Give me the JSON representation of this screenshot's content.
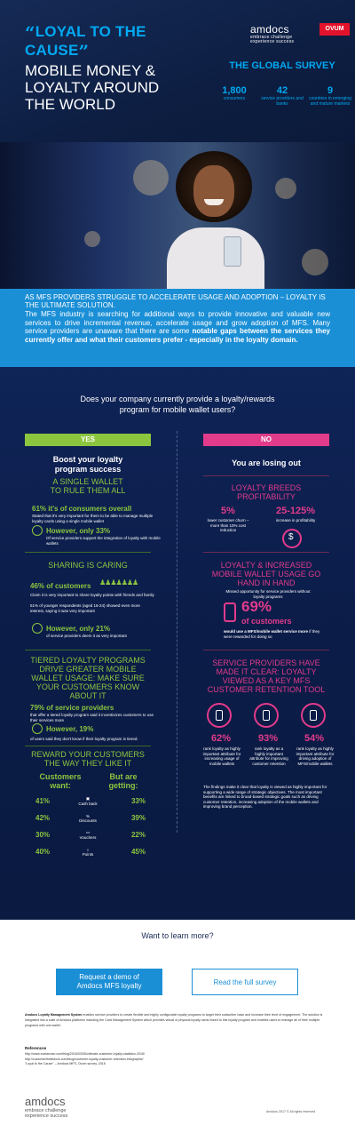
{
  "hero": {
    "quote_line1": "LOYAL TO THE",
    "quote_line2": "CAUSE",
    "subtitle_line1": "MOBILE MONEY &",
    "subtitle_line2": "LOYALTY AROUND",
    "subtitle_line3": "THE WORLD",
    "brand_name": "amdocs",
    "brand_tag1": "embrace challenge",
    "brand_tag2": "experience success",
    "partner_logo": "OVUM"
  },
  "survey": {
    "title": "THE GLOBAL SURVEY",
    "stats": [
      {
        "num": "1,800",
        "label": "consumers"
      },
      {
        "num": "42",
        "label": "service providers and banks"
      },
      {
        "num": "9",
        "label": "countries in emerging and mature markets"
      }
    ]
  },
  "banner": {
    "headline": "AS MFS PROVIDERS STRUGGLE TO ACCELERATE USAGE AND ADOPTION – LOYALTY IS THE ULTIMATE SOLUTION.",
    "body": "The MFS industry is searching for additional ways to provide innovative and valuable new services to drive incremental revenue, accelerate usage and grow adoption of MFS. Many service providers are unaware that there are some",
    "body_bold": "notable gaps between the services they currently offer and what their customers prefer - especially in the loyalty domain."
  },
  "question": {
    "line1": "Does your company currently provide a loyalty/rewards",
    "line2": "program for mobile wallet users?"
  },
  "yes_button": "YES",
  "no_button": "NO",
  "yes_col": {
    "head_line1": "Boost your loyalty",
    "head_line2": "program success",
    "s1_title1": "A SINGLE WALLET",
    "s1_title2": "TO RULE THEM ALL",
    "s1_stat": "61% it's of consumers overall",
    "s1_text": "Stated that it's very important for them to be able to manage multiple loyalty cards using a single mobile wallet",
    "s1_however": "However, only 33%",
    "s1_however_text": "Of service providers support the integration of loyalty with mobile wallets",
    "s2_title": "SHARING IS CARING",
    "s2_stat": "46% of customers",
    "s2_text": "Claim it is very important to share loyalty points with friends and family",
    "s2_text2": "51% of younger respondents (aged 16-24) showed even more interest, saying it was very important",
    "s2_however": "However, only 21%",
    "s2_however_text": "of service providers deem it as very important",
    "s3_title1": "TIERED LOYALTY PROGRAMS",
    "s3_title2": "DRIVE GREATER MOBILE",
    "s3_title3": "WALLET USAGE: MAKE SURE",
    "s3_title4": "YOUR CUSTOMERS KNOW",
    "s3_title5": "ABOUT IT",
    "s3_stat": "79% of service providers",
    "s3_text": "that offer a tiered loyalty program said it incentivizes customers to use their services more",
    "s3_however": "However, 19%",
    "s3_however_text": "of users said they don't know if their loyalty program is tiered.",
    "s4_title1": "REWARD YOUR CUSTOMERS",
    "s4_title2": "THE WAY THEY LIKE IT",
    "s4_left_head1": "Customers",
    "s4_left_head2": "want:",
    "s4_right_head1": "But are",
    "s4_right_head2": "getting:",
    "rewards": [
      {
        "want": "41%",
        "label": "Cash back",
        "get": "33%"
      },
      {
        "want": "42%",
        "label": "Discounts",
        "get": "39%"
      },
      {
        "want": "30%",
        "label": "Vouchers",
        "get": "22%"
      },
      {
        "want": "40%",
        "label": "Points",
        "get": "45%"
      }
    ]
  },
  "no_col": {
    "head": "You are losing out",
    "s1_title1": "LOYALTY BREEDS",
    "s1_title2": "PROFITABILITY",
    "s1_a_num": "5%",
    "s1_a_text": "lower customer churn – more than 10% cost reduction",
    "s1_b_num": "25-125%",
    "s1_b_text": "increase in profitability",
    "s2_title1": "LOYALTY & INCREASED",
    "s2_title2": "MOBILE WALLET USAGE GO",
    "s2_title3": "HAND IN HAND",
    "s2_text": "Missed opportunity for service providers without loyalty programs",
    "s2_num": "69%",
    "s2_num_label": "of customers",
    "s2_bold": "would use a MFS/mobile wallet service more",
    "s2_tail": "if they were rewarded for doing so",
    "s3_title1": "SERVICE PROVIDERS HAVE",
    "s3_title2": "MADE IT CLEAR: LOYALTY",
    "s3_title3": "VIEWED AS A KEY MFS",
    "s3_title4": "CUSTOMER RETENTION TOOL",
    "s3_items": [
      {
        "num": "62%",
        "text": "rank loyalty as highly important attribute for increasing usage of mobile wallets"
      },
      {
        "num": "93%",
        "text": "rank loyalty as a highly important attribute for improving customer retention"
      },
      {
        "num": "54%",
        "text": "rank loyalty as highly important attribute for driving adoption of MFS/mobile wallets"
      }
    ],
    "s3_findings": "The findings make it clear that loyalty is viewed as highly important for supporting a wide range of strategic objectives. The most important benefits are linked to broad-based strategic goals such as driving customer retention, increasing adoption of the mobile wallets and improving brand perception."
  },
  "cta": {
    "learn_more": "Want to learn more?",
    "demo_line1": "Request a demo of",
    "demo_line2": "Amdocs MFS loyalty",
    "survey": "Read the full survey"
  },
  "footer": {
    "about_bold": "Amdocs Loyalty Management System",
    "about": "enables service providers to create flexible and highly configurable loyalty programs to target their subscriber base and increase their level of engagement. The solution is integrated into a suite of Amdocs platforms including the Card Management System which provides virtual or physical loyalty cards linked to this loyalty program and enables users to manage all of their multiple programs with one wallet.",
    "refs_head": "References",
    "ref1": "http://www.ecelarman.com/blog/2016/03/05/ultimate-customer-loyalty-statistics-2016/",
    "ref2": "http://customerthinkblock.com/blog/customer-loyalty-customer-retention-infographic/",
    "ref3": "\"Loyal to the Cause\" – Amdocs MFS, Ovum survey, 2016",
    "logo_name": "amdocs",
    "logo_tag1": "embrace challenge",
    "logo_tag2": "experience success",
    "copyright": "Amdocs 2017 © All rights reserved"
  }
}
